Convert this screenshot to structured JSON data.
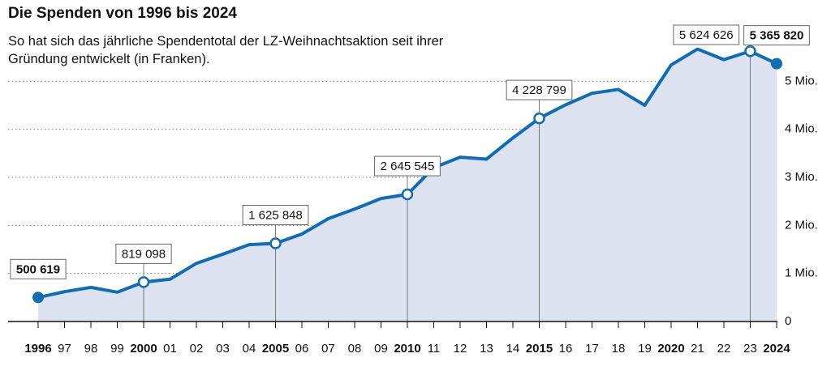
{
  "chart_data": {
    "type": "area",
    "title": "Die Spenden von 1996 bis 2024",
    "subtitle": "So hat sich das jährliche Spendentotal der LZ-Weihnachtsaktion seit ihrer Gründung entwickelt (in Franken).",
    "x": [
      1996,
      1997,
      1998,
      1999,
      2000,
      2001,
      2002,
      2003,
      2004,
      2005,
      2006,
      2007,
      2008,
      2009,
      2010,
      2011,
      2012,
      2013,
      2014,
      2015,
      2016,
      2017,
      2018,
      2019,
      2020,
      2021,
      2022,
      2023,
      2024
    ],
    "series": [
      {
        "color": "#0f6cb5",
        "fill": "#dde2f0",
        "values": [
          500619,
          620000,
          710000,
          610000,
          819098,
          880000,
          1210000,
          1400000,
          1600000,
          1625848,
          1820000,
          2140000,
          2340000,
          2560000,
          2645545,
          3200000,
          3420000,
          3380000,
          3820000,
          4228799,
          4510000,
          4750000,
          4830000,
          4500000,
          5340000,
          5670000,
          5450000,
          5624626,
          5365820
        ],
        "value_labels": [
          "500 619",
          null,
          null,
          null,
          "819 098",
          null,
          null,
          null,
          null,
          "1 625 848",
          null,
          null,
          null,
          null,
          "2 645 545",
          null,
          null,
          null,
          null,
          "4 228 799",
          null,
          null,
          null,
          null,
          null,
          null,
          null,
          "5 624 626",
          "5 365 820"
        ]
      }
    ],
    "xlim": [
      1996,
      2024
    ],
    "xticks": [
      1996,
      {
        "value": 1997,
        "label": "97"
      },
      {
        "value": 1998,
        "label": "98"
      },
      {
        "value": 1999,
        "label": "99"
      },
      2000,
      {
        "value": 2001,
        "label": "01"
      },
      {
        "value": 2002,
        "label": "02"
      },
      {
        "value": 2003,
        "label": "03"
      },
      {
        "value": 2004,
        "label": "04"
      },
      2005,
      {
        "value": 2006,
        "label": "06"
      },
      {
        "value": 2007,
        "label": "07"
      },
      {
        "value": 2008,
        "label": "08"
      },
      {
        "value": 2009,
        "label": "09"
      },
      2010,
      {
        "value": 2011,
        "label": "11"
      },
      {
        "value": 2012,
        "label": "12"
      },
      {
        "value": 2013,
        "label": "13"
      },
      {
        "value": 2014,
        "label": "14"
      },
      2015,
      {
        "value": 2016,
        "label": "16"
      },
      {
        "value": 2017,
        "label": "17"
      },
      {
        "value": 2018,
        "label": "18"
      },
      {
        "value": 2019,
        "label": "19"
      },
      2020,
      {
        "value": 2021,
        "label": "21"
      },
      {
        "value": 2022,
        "label": "22"
      },
      {
        "value": 2023,
        "label": "23"
      },
      2024
    ],
    "ylim": [
      0,
      6000000
    ],
    "yticks": [
      0,
      {
        "value": 1000000,
        "label": "1 Mio."
      },
      {
        "value": 2000000,
        "label": "2 Mio."
      },
      {
        "value": 3000000,
        "label": "3 Mio."
      },
      {
        "value": 4000000,
        "label": "4 Mio."
      },
      {
        "value": 5000000,
        "label": "5 Mio."
      }
    ],
    "grid": true
  }
}
